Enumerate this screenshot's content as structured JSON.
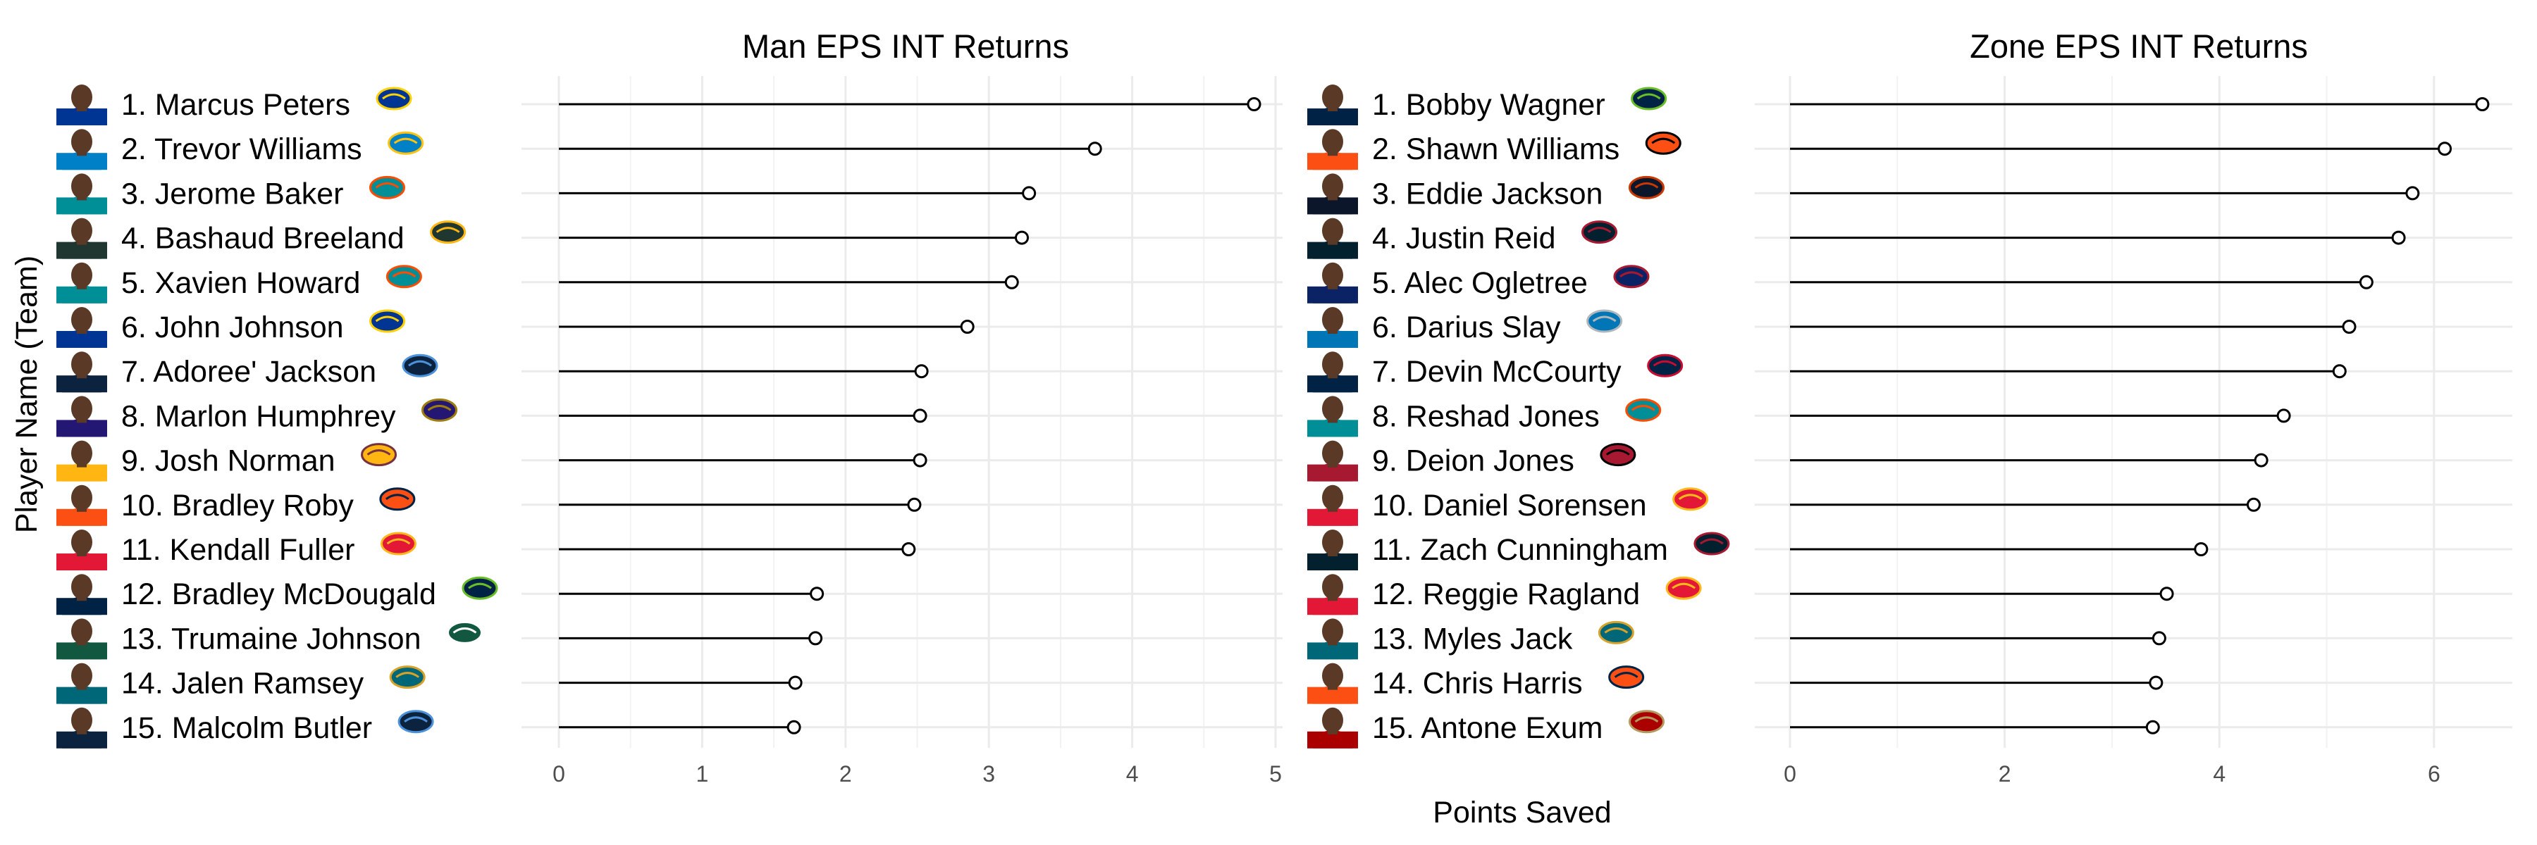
{
  "y_axis_label": "Player Name (Team)",
  "x_axis_label": "Points Saved",
  "chart_data": [
    {
      "type": "lollipop",
      "title": "Man EPS INT Returns",
      "xlabel": "Points Saved",
      "ylabel": "Player Name (Team)",
      "xlim": [
        0,
        5
      ],
      "x_ticks": [
        0,
        1,
        2,
        3,
        4,
        5
      ],
      "grid": true,
      "series": [
        {
          "name": "",
          "values": [
            4.85,
            3.74,
            3.28,
            3.23,
            3.16,
            2.85,
            2.53,
            2.52,
            2.52,
            2.48,
            2.44,
            1.8,
            1.79,
            1.65,
            1.64
          ]
        }
      ],
      "players": [
        {
          "label": "1. Marcus Peters",
          "team": "LAR",
          "color": "#003594",
          "accent": "#FFD100"
        },
        {
          "label": "2. Trevor Williams",
          "team": "LAC",
          "color": "#0080C6",
          "accent": "#FFC20E"
        },
        {
          "label": "3. Jerome Baker",
          "team": "MIA",
          "color": "#008E97",
          "accent": "#FC4C02"
        },
        {
          "label": "4. Bashaud Breeland",
          "team": "GB",
          "color": "#203731",
          "accent": "#FFB612"
        },
        {
          "label": "5. Xavien Howard",
          "team": "MIA",
          "color": "#008E97",
          "accent": "#FC4C02"
        },
        {
          "label": "6. John Johnson",
          "team": "LAR",
          "color": "#003594",
          "accent": "#FFD100"
        },
        {
          "label": "7. Adoree' Jackson",
          "team": "TEN",
          "color": "#0C2340",
          "accent": "#4B92DB"
        },
        {
          "label": "8. Marlon Humphrey",
          "team": "BAL",
          "color": "#241773",
          "accent": "#9E7C0C"
        },
        {
          "label": "9. Josh Norman",
          "team": "WAS",
          "color": "#FFB612",
          "accent": "#773141"
        },
        {
          "label": "10. Bradley Roby",
          "team": "HOU",
          "color": "#FB4F14",
          "accent": "#002244"
        },
        {
          "label": "11. Kendall Fuller",
          "team": "KC",
          "color": "#E31837",
          "accent": "#FFB81C"
        },
        {
          "label": "12. Bradley McDougald",
          "team": "SEA",
          "color": "#002244",
          "accent": "#69BE28"
        },
        {
          "label": "13. Trumaine Johnson",
          "team": "NYJ",
          "color": "#125740",
          "accent": "#FFFFFF"
        },
        {
          "label": "14. Jalen Ramsey",
          "team": "JAX",
          "color": "#006778",
          "accent": "#D7A22A"
        },
        {
          "label": "15. Malcolm Butler",
          "team": "TEN",
          "color": "#0C2340",
          "accent": "#4B92DB"
        }
      ]
    },
    {
      "type": "lollipop",
      "title": "Zone EPS INT Returns",
      "xlabel": "Points Saved",
      "ylabel": "Player Name (Team)",
      "xlim": [
        0,
        6.5
      ],
      "x_ticks": [
        0,
        2,
        4,
        6
      ],
      "grid": true,
      "series": [
        {
          "name": "",
          "values": [
            6.45,
            6.1,
            5.8,
            5.67,
            5.37,
            5.21,
            5.12,
            4.6,
            4.39,
            4.32,
            3.83,
            3.51,
            3.44,
            3.41,
            3.38
          ]
        }
      ],
      "players": [
        {
          "label": "1. Bobby Wagner",
          "team": "SEA",
          "color": "#002244",
          "accent": "#69BE28"
        },
        {
          "label": "2. Shawn Williams",
          "team": "CIN",
          "color": "#FB4F14",
          "accent": "#000000"
        },
        {
          "label": "3. Eddie Jackson",
          "team": "CHI",
          "color": "#0B162A",
          "accent": "#C83803"
        },
        {
          "label": "4. Justin Reid",
          "team": "HOU",
          "color": "#03202F",
          "accent": "#A71930"
        },
        {
          "label": "5. Alec Ogletree",
          "team": "NYG",
          "color": "#0B2265",
          "accent": "#A71930"
        },
        {
          "label": "6. Darius Slay",
          "team": "DET",
          "color": "#0076B6",
          "accent": "#B0B7BC"
        },
        {
          "label": "7. Devin McCourty",
          "team": "NE",
          "color": "#002244",
          "accent": "#C60C30"
        },
        {
          "label": "8. Reshad Jones",
          "team": "MIA",
          "color": "#008E97",
          "accent": "#FC4C02"
        },
        {
          "label": "9. Deion Jones",
          "team": "ATL",
          "color": "#A71930",
          "accent": "#000000"
        },
        {
          "label": "10. Daniel Sorensen",
          "team": "KC",
          "color": "#E31837",
          "accent": "#FFB81C"
        },
        {
          "label": "11. Zach Cunningham",
          "team": "HOU",
          "color": "#03202F",
          "accent": "#A71930"
        },
        {
          "label": "12. Reggie Ragland",
          "team": "KC",
          "color": "#E31837",
          "accent": "#FFB81C"
        },
        {
          "label": "13. Myles Jack",
          "team": "JAX",
          "color": "#006778",
          "accent": "#D7A22A"
        },
        {
          "label": "14. Chris Harris",
          "team": "DEN",
          "color": "#FB4F14",
          "accent": "#002244"
        },
        {
          "label": "15. Antone Exum",
          "team": "SF",
          "color": "#AA0000",
          "accent": "#B3995D"
        }
      ]
    }
  ]
}
